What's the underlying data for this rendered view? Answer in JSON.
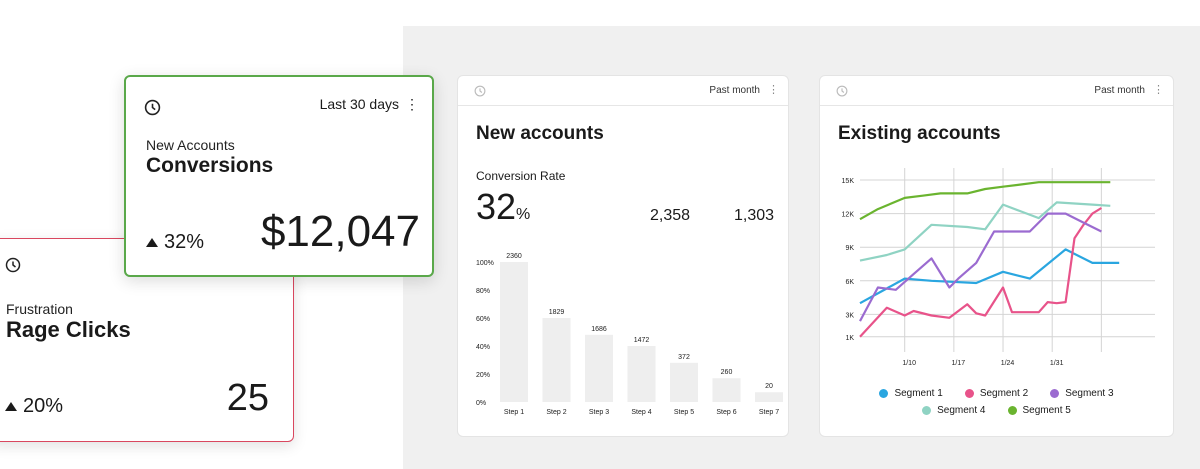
{
  "rage_card": {
    "subtitle": "Frustration",
    "title": "Rage Clicks",
    "delta": "20%",
    "value": "25"
  },
  "conversions_card": {
    "period": "Last 30 days",
    "subtitle": "New Accounts",
    "title": "Conversions",
    "delta": "32%",
    "value": "$12,047"
  },
  "new_accounts": {
    "period": "Past month",
    "title": "New accounts",
    "rate_label": "Conversion Rate",
    "rate_value": "32",
    "rate_unit": "%",
    "metric_1": "2,358",
    "metric_2": "1,303"
  },
  "existing_accounts": {
    "period": "Past month",
    "title": "Existing accounts"
  },
  "colors": {
    "accent_green": "#5aa84a",
    "accent_red": "#d9475f",
    "bar": "#eeeeee"
  },
  "chart_data": [
    {
      "type": "bar",
      "categories": [
        "Step 1",
        "Step 2",
        "Step 3",
        "Step 4",
        "Step 5",
        "Step 6",
        "Step 7"
      ],
      "values": [
        2360,
        1829,
        1686,
        1472,
        372,
        260,
        20
      ],
      "display_heights_pct": [
        100,
        60,
        48,
        40,
        28,
        17,
        7
      ],
      "data_labels": [
        "2360",
        "1829",
        "1686",
        "1472",
        "372",
        "260",
        "20"
      ],
      "y_ticks": [
        "0%",
        "20%",
        "40%",
        "60%",
        "80%",
        "100%"
      ],
      "ylim": [
        0,
        100
      ]
    },
    {
      "type": "line",
      "x_ticks": [
        "1/10",
        "1/17",
        "1/24",
        "1/31"
      ],
      "y_ticks": [
        "1K",
        "3K",
        "6K",
        "9K",
        "12K",
        "15K"
      ],
      "ylim": [
        0,
        15
      ],
      "xlim": [
        0,
        33
      ],
      "grid": true,
      "legend": "bottom",
      "series": [
        {
          "name": "Segment 1",
          "color": "#2aa6e0",
          "x": [
            0,
            5,
            8,
            13,
            16,
            19,
            23,
            26,
            29
          ],
          "values": [
            4.0,
            6.2,
            6.0,
            5.8,
            6.8,
            6.2,
            8.8,
            7.6,
            7.6
          ]
        },
        {
          "name": "Segment 2",
          "color": "#e8538a",
          "x": [
            0,
            3,
            5,
            6,
            8,
            10,
            12,
            13,
            14,
            16,
            17,
            19,
            20,
            21,
            22,
            23,
            24,
            25,
            26,
            27
          ],
          "values": [
            1.0,
            3.6,
            2.9,
            3.3,
            2.9,
            2.7,
            3.9,
            3.1,
            2.9,
            5.4,
            3.2,
            3.2,
            3.2,
            4.1,
            4.0,
            4.1,
            9.8,
            11.0,
            12.0,
            12.5
          ]
        },
        {
          "name": "Segment 3",
          "color": "#9b6bd0",
          "x": [
            0,
            2,
            4,
            6,
            8,
            10,
            11,
            13,
            15,
            17,
            19,
            21,
            23,
            25,
            27
          ],
          "values": [
            2.4,
            5.4,
            5.2,
            6.6,
            8.0,
            5.4,
            6.2,
            7.6,
            10.4,
            10.4,
            10.4,
            12.0,
            12.0,
            11.2,
            10.4
          ]
        },
        {
          "name": "Segment 4",
          "color": "#8fd3c3",
          "x": [
            0,
            3,
            5,
            8,
            12,
            14,
            16,
            18,
            20,
            22,
            24,
            26,
            28
          ],
          "values": [
            7.8,
            8.3,
            8.8,
            11.0,
            10.8,
            10.6,
            12.8,
            12.2,
            11.6,
            13.0,
            12.9,
            12.8,
            12.7
          ]
        },
        {
          "name": "Segment 5",
          "color": "#6ab42f",
          "x": [
            0,
            2,
            5,
            7,
            9,
            12,
            14,
            16,
            18,
            20,
            22,
            24,
            26,
            28
          ],
          "values": [
            11.5,
            12.4,
            13.4,
            13.6,
            13.8,
            13.8,
            14.2,
            14.4,
            14.6,
            14.8,
            14.8,
            14.8,
            14.8,
            14.8
          ]
        }
      ]
    }
  ]
}
